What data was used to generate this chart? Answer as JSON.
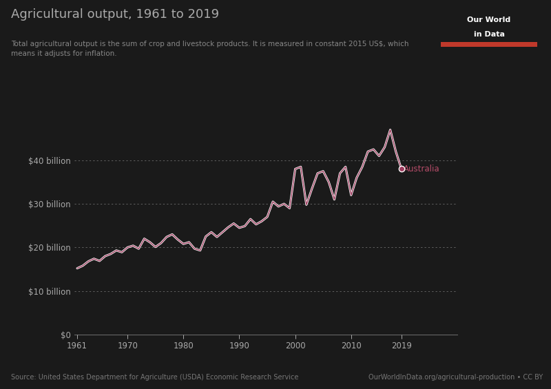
{
  "title": "Agricultural output, 1961 to 2019",
  "subtitle": "Total agricultural output is the sum of crop and livestock products. It is measured in constant 2015 US$, which\nmeans it adjusts for inflation.",
  "source_left": "Source: United States Department for Agriculture (USDA) Economic Research Service",
  "source_right": "OurWorldInData.org/agricultural-production • CC BY",
  "label": "Australia",
  "line_color_dark": "#9e3b5e",
  "line_color_light": "#ffffff",
  "background_color": "#1a1a1a",
  "text_color": "#aaaaaa",
  "grid_color": "#ffffff",
  "label_color": "#b84d6a",
  "ytick_labels": [
    "$0",
    "$10 billion",
    "$20 billion",
    "$30 billion",
    "$40 billion"
  ],
  "ytick_values": [
    0,
    10,
    20,
    30,
    40
  ],
  "xtick_labels": [
    "1961",
    "1970",
    "1980",
    "1990",
    "2000",
    "2010",
    "2019"
  ],
  "xtick_values": [
    1961,
    1970,
    1980,
    1990,
    2000,
    2010,
    2019
  ],
  "ylim_min": 0,
  "ylim_max": 50,
  "xlim_min": 1961,
  "xlim_max": 2019,
  "years": [
    1961,
    1962,
    1963,
    1964,
    1965,
    1966,
    1967,
    1968,
    1969,
    1970,
    1971,
    1972,
    1973,
    1974,
    1975,
    1976,
    1977,
    1978,
    1979,
    1980,
    1981,
    1982,
    1983,
    1984,
    1985,
    1986,
    1987,
    1988,
    1989,
    1990,
    1991,
    1992,
    1993,
    1994,
    1995,
    1996,
    1997,
    1998,
    1999,
    2000,
    2001,
    2002,
    2003,
    2004,
    2005,
    2006,
    2007,
    2008,
    2009,
    2010,
    2011,
    2012,
    2013,
    2014,
    2015,
    2016,
    2017,
    2018,
    2019
  ],
  "values": [
    15.2,
    15.8,
    16.8,
    17.4,
    16.9,
    18.0,
    18.5,
    19.3,
    18.9,
    20.0,
    20.4,
    19.7,
    22.0,
    21.2,
    20.1,
    21.0,
    22.4,
    23.0,
    21.8,
    20.8,
    21.2,
    19.7,
    19.3,
    22.5,
    23.5,
    22.4,
    23.5,
    24.6,
    25.5,
    24.5,
    24.9,
    26.5,
    25.3,
    26.0,
    27.0,
    30.5,
    29.4,
    30.0,
    29.0,
    38.0,
    38.5,
    29.8,
    33.5,
    37.0,
    37.5,
    35.0,
    31.0,
    37.0,
    38.5,
    32.0,
    36.0,
    38.5,
    42.0,
    42.5,
    41.0,
    43.0,
    47.0,
    42.0,
    38.0
  ],
  "logo_bg": "#1d3461",
  "logo_red": "#c0392b",
  "logo_text": "Our World\nin Data"
}
